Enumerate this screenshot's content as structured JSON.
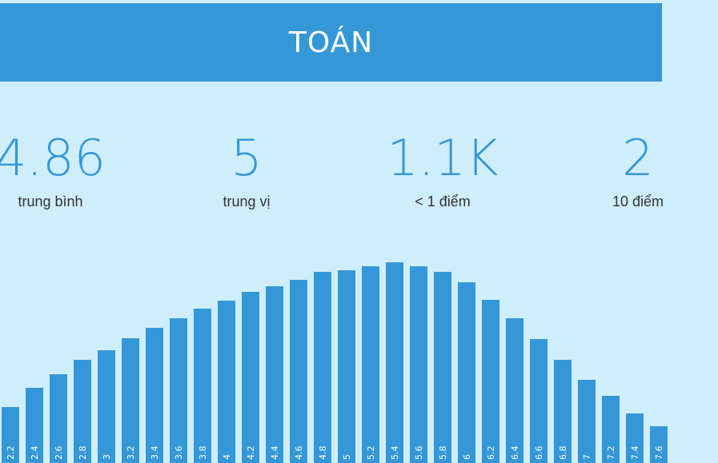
{
  "header": {
    "title": "TOÁN"
  },
  "stats": [
    {
      "value": "4.86",
      "label": "trung bình"
    },
    {
      "value": "5",
      "label": "trung vị"
    },
    {
      "value": "1.1K",
      "label": "< 1 điểm"
    },
    {
      "value": "2",
      "label": "10 điểm"
    }
  ],
  "colors": {
    "accent": "#3498d8",
    "background": "#cfeefc",
    "header_bg": "#3498d8"
  },
  "chart_data": {
    "type": "bar",
    "categories": [
      "2.2",
      "2.4",
      "2.6",
      "2.8",
      "3",
      "3.2",
      "3.4",
      "3.6",
      "3.8",
      "4",
      "4.2",
      "4.4",
      "4.6",
      "4.8",
      "5",
      "5.2",
      "5.4",
      "5.6",
      "5.8",
      "6",
      "6.2",
      "6.4",
      "6.6",
      "6.8",
      "7",
      "7.2",
      "7.4",
      "7.6"
    ],
    "values": [
      70,
      94,
      111,
      129,
      141,
      156,
      169,
      181,
      193,
      203,
      214,
      221,
      229,
      239,
      241,
      246,
      251,
      246,
      239,
      226,
      204,
      181,
      155,
      129,
      104,
      84,
      62,
      46
    ],
    "title": "",
    "xlabel": "",
    "ylabel": "",
    "ylim": [
      0,
      260
    ],
    "grid": false,
    "legend": "none"
  }
}
